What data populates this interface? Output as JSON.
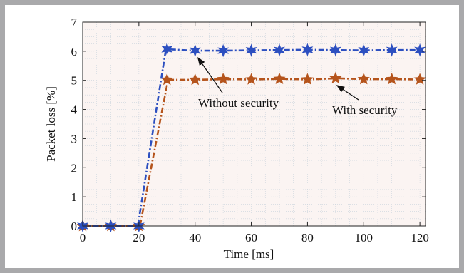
{
  "chart_data": {
    "type": "line",
    "xlabel": "Time [ms]",
    "ylabel": "Packet loss [%]",
    "xlim": [
      0,
      122
    ],
    "ylim": [
      0,
      7
    ],
    "xticks": [
      0,
      20,
      40,
      60,
      80,
      100,
      120
    ],
    "yticks": [
      0,
      1,
      2,
      3,
      4,
      5,
      6,
      7
    ],
    "grid": true,
    "x": [
      0,
      10,
      20,
      30,
      40,
      50,
      60,
      70,
      80,
      90,
      100,
      110,
      120
    ],
    "series": [
      {
        "key": "without",
        "color": "#2c4fc0",
        "marker": "star",
        "values": [
          0,
          0,
          0,
          6.07,
          6.02,
          6.02,
          6.03,
          6.04,
          6.05,
          6.04,
          6.03,
          6.04,
          6.04
        ]
      },
      {
        "key": "with",
        "color": "#b5541c",
        "marker": "star",
        "values": [
          0,
          0,
          0,
          5.02,
          5.02,
          5.04,
          5.03,
          5.05,
          5.03,
          5.07,
          5.04,
          5.04,
          5.03
        ]
      }
    ],
    "annotations": [
      {
        "text": "Without security",
        "target_series": "without",
        "target_x": 40
      },
      {
        "text": "With security",
        "target_series": "with",
        "target_x": 90
      }
    ]
  }
}
